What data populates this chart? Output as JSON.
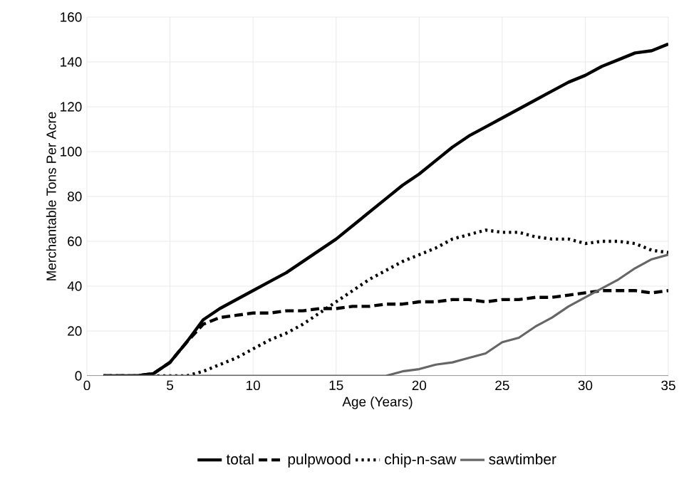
{
  "chart_data": {
    "type": "line",
    "xlabel": "Age (Years)",
    "ylabel": "Merchantable Tons Per Acre",
    "x": [
      1,
      2,
      3,
      4,
      5,
      6,
      7,
      8,
      9,
      10,
      11,
      12,
      13,
      14,
      15,
      16,
      17,
      18,
      19,
      20,
      21,
      22,
      23,
      24,
      25,
      26,
      27,
      28,
      29,
      30,
      31,
      32,
      33,
      34,
      35
    ],
    "series": [
      {
        "name": "total",
        "color": "#000000",
        "line_style": "solid",
        "values": [
          0,
          0,
          0,
          1,
          6,
          15,
          25,
          30,
          34,
          38,
          42,
          46,
          51,
          56,
          61,
          67,
          73,
          79,
          85,
          90,
          96,
          102,
          107,
          111,
          115,
          119,
          123,
          127,
          131,
          134,
          138,
          141,
          144,
          145,
          148
        ]
      },
      {
        "name": "pulpwood",
        "color": "#000000",
        "line_style": "dashed",
        "values": [
          0,
          0,
          0,
          1,
          6,
          15,
          23,
          26,
          27,
          28,
          28,
          29,
          29,
          30,
          30,
          31,
          31,
          32,
          32,
          33,
          33,
          34,
          34,
          33,
          34,
          34,
          35,
          35,
          36,
          37,
          38,
          38,
          38,
          37,
          38
        ]
      },
      {
        "name": "chip-n-saw",
        "color": "#000000",
        "line_style": "dotted",
        "values": [
          0,
          0,
          0,
          0,
          0,
          0,
          2,
          5,
          8,
          12,
          16,
          19,
          23,
          28,
          33,
          38,
          43,
          47,
          51,
          54,
          57,
          61,
          63,
          65,
          64,
          64,
          62,
          61,
          61,
          59,
          60,
          60,
          59,
          56,
          55
        ]
      },
      {
        "name": "sawtimber",
        "color": "#666666",
        "line_style": "solid",
        "values": [
          0,
          0,
          0,
          0,
          0,
          0,
          0,
          0,
          0,
          0,
          0,
          0,
          0,
          0,
          0,
          0,
          0,
          0,
          2,
          3,
          5,
          6,
          8,
          10,
          15,
          17,
          22,
          26,
          31,
          35,
          39,
          43,
          48,
          52,
          54
        ]
      }
    ],
    "xlim": [
      0,
      35
    ],
    "ylim": [
      0,
      160
    ],
    "xticks": [
      0,
      5,
      10,
      15,
      20,
      25,
      30,
      35
    ],
    "yticks": [
      0,
      20,
      40,
      60,
      80,
      100,
      120,
      140,
      160
    ],
    "grid": true,
    "legend": "bottom",
    "marker": "none"
  }
}
